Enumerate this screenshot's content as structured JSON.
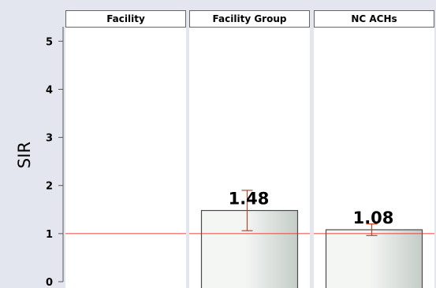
{
  "chart_data": {
    "type": "bar",
    "ylabel": "SIR",
    "ylim": [
      0,
      5.3
    ],
    "yticks": [
      0,
      1,
      2,
      3,
      4,
      5
    ],
    "reference_line": 1,
    "panels": [
      {
        "label": "Facility",
        "value": null,
        "value_label": "",
        "ci": null
      },
      {
        "label": "Facility Group",
        "value": 1.48,
        "value_label": "1.48",
        "ci": [
          1.06,
          1.9
        ]
      },
      {
        "label": "NC ACHs",
        "value": 1.08,
        "value_label": "1.08",
        "ci": [
          0.96,
          1.2
        ]
      }
    ]
  },
  "colors": {
    "background": "#e4e6ef",
    "panel": "#ffffff",
    "reference_line": "#e8413c",
    "error_bar": "#b5472a",
    "bar_edge": "#4a4a4a",
    "bar_fill_light": "#f4f6f4",
    "bar_fill_dark": "#c5ccc8"
  }
}
